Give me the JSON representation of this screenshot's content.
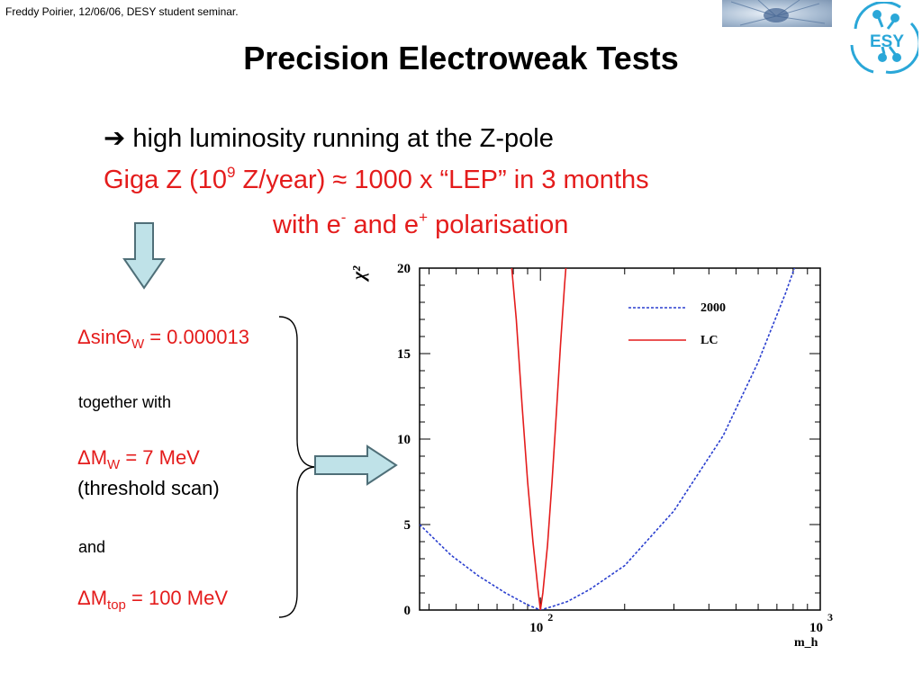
{
  "header": {
    "note": "Freddy Poirier, 12/06/06, DESY student seminar."
  },
  "logo": {
    "text": "ESY",
    "color": "#2aa7d8"
  },
  "title": "Precision Electroweak Tests",
  "lines": {
    "l1": "high luminosity running at the Z-pole",
    "l1_arrow_glyph": "➔",
    "l2_prefix": "Giga Z (10",
    "l2_sup": "9",
    "l2_suffix": " Z/year) ≈ 1000 x “LEP” in 3 months",
    "l3_a": "with e",
    "l3_sup1": "-",
    "l3_b": " and e",
    "l3_sup2": "+",
    "l3_c": " polarisation"
  },
  "results": {
    "sin_prefix": "ΔsinΘ",
    "sin_sub": "W",
    "sin_suffix": " = 0.000013",
    "together": "together with",
    "mw_prefix": "ΔM",
    "mw_sub": "W",
    "mw_suffix": " = 7 MeV",
    "threshold": "(threshold scan)",
    "and": "and",
    "mtop_prefix": "ΔM",
    "mtop_sub": "top",
    "mtop_suffix": " =  100 MeV"
  },
  "colors": {
    "red": "#e41c1c",
    "blue": "#2a3fcf",
    "arrow_fill": "#bfe2e8"
  },
  "chart_data": {
    "type": "line",
    "xscale": "log",
    "xlim": [
      37,
      1000
    ],
    "ylim": [
      0,
      20
    ],
    "ylabel": "χ²",
    "xlabel": "m_h",
    "yticks": [
      "0",
      "5",
      "10",
      "15",
      "20"
    ],
    "xticks": [
      {
        "base": "10",
        "exp": "2"
      },
      {
        "base": "10",
        "exp": "3"
      }
    ],
    "legend_position": "top-right",
    "series": [
      {
        "name": "2000",
        "style": "dashed",
        "color": "#2a3fcf",
        "x": [
          37,
          48,
          60,
          75,
          90,
          100,
          110,
          125,
          150,
          200,
          300,
          450,
          600,
          750,
          850
        ],
        "y": [
          5,
          3.2,
          2,
          1,
          0.3,
          0,
          0.2,
          0.5,
          1.2,
          2.6,
          5.8,
          10.2,
          14.5,
          18.5,
          21
        ]
      },
      {
        "name": "LC",
        "style": "solid",
        "color": "#e41c1c",
        "x": [
          78,
          82,
          86,
          90,
          94,
          98,
          100,
          102,
          106,
          110,
          114,
          118,
          122,
          126
        ],
        "y": [
          21,
          17,
          12,
          7.5,
          4,
          1.2,
          0,
          1,
          3.8,
          7.5,
          11.5,
          15.5,
          19,
          22
        ]
      }
    ]
  }
}
